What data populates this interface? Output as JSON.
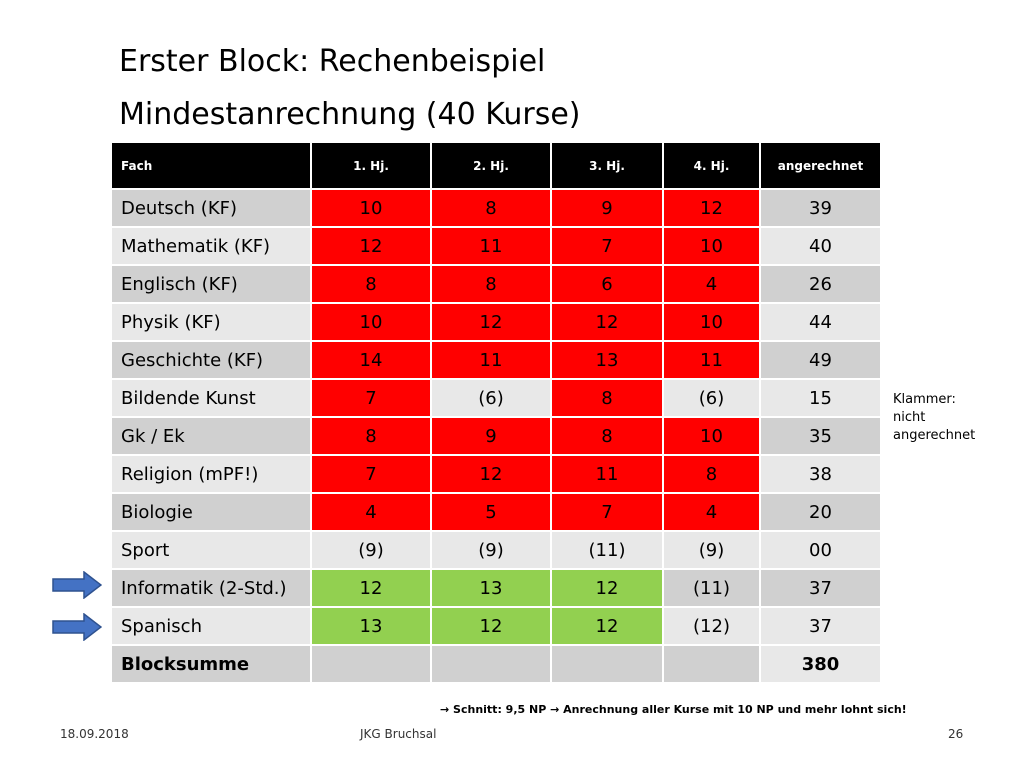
{
  "slide": {
    "title_line1": "Erster Block: Rechenbeispiel",
    "title_line2": "Mindestanrechnung (40 Kurse)"
  },
  "table": {
    "headers": [
      "Fach",
      "1. Hj.",
      "2. Hj.",
      "3. Hj.",
      "4. Hj.",
      "angerechnet"
    ],
    "rows": [
      {
        "fach": "Deutsch (KF)",
        "values": [
          "10",
          "8",
          "9",
          "12"
        ],
        "colors": [
          "red",
          "red",
          "red",
          "red"
        ],
        "sum": "39"
      },
      {
        "fach": "Mathematik  (KF)",
        "values": [
          "12",
          "11",
          "7",
          "10"
        ],
        "colors": [
          "red",
          "red",
          "red",
          "red"
        ],
        "sum": "40"
      },
      {
        "fach": "Englisch (KF)",
        "values": [
          "8",
          "8",
          "6",
          "4"
        ],
        "colors": [
          "red",
          "red",
          "red",
          "red"
        ],
        "sum": "26"
      },
      {
        "fach": "Physik (KF)",
        "values": [
          "10",
          "12",
          "12",
          "10"
        ],
        "colors": [
          "red",
          "red",
          "red",
          "red"
        ],
        "sum": "44"
      },
      {
        "fach": "Geschichte  (KF)",
        "values": [
          "14",
          "11",
          "13",
          "11"
        ],
        "colors": [
          "red",
          "red",
          "red",
          "red"
        ],
        "sum": "49"
      },
      {
        "fach": "Bildende Kunst",
        "values": [
          "7",
          "(6)",
          "8",
          "(6)"
        ],
        "colors": [
          "red",
          "plain",
          "red",
          "plain"
        ],
        "sum": "15"
      },
      {
        "fach": "Gk / Ek",
        "values": [
          "8",
          "9",
          "8",
          "10"
        ],
        "colors": [
          "red",
          "red",
          "red",
          "red"
        ],
        "sum": "35"
      },
      {
        "fach": "Religion (mPF!)",
        "values": [
          "7",
          "12",
          "11",
          "8"
        ],
        "colors": [
          "red",
          "red",
          "red",
          "red"
        ],
        "sum": "38"
      },
      {
        "fach": "Biologie",
        "values": [
          "4",
          "5",
          "7",
          "4"
        ],
        "colors": [
          "red",
          "red",
          "red",
          "red"
        ],
        "sum": "20"
      },
      {
        "fach": "Sport",
        "values": [
          "(9)",
          "(9)",
          "(11)",
          "(9)"
        ],
        "colors": [
          "plain",
          "plain",
          "plain",
          "plain"
        ],
        "sum": "00"
      },
      {
        "fach": "Informatik (2-Std.)",
        "values": [
          "12",
          "13",
          "12",
          "(11)"
        ],
        "colors": [
          "green",
          "green",
          "green",
          "plain"
        ],
        "sum": "37"
      },
      {
        "fach": "Spanisch",
        "values": [
          "13",
          "12",
          "12",
          "(12)"
        ],
        "colors": [
          "green",
          "green",
          "green",
          "plain"
        ],
        "sum": "37"
      }
    ],
    "total_label": "Blocksumme",
    "total_value": "380"
  },
  "note": {
    "line1": "Klammer:",
    "line2": "nicht",
    "line3": "angerechnet"
  },
  "footnote": "→ Schnitt: 9,5 NP  → Anrechnung aller Kurse mit 10 NP und mehr lohnt sich!",
  "footer": {
    "date": "18.09.2018",
    "school": "JKG Bruchsal",
    "page": "26"
  },
  "colors": {
    "red": "#ff0000",
    "green": "#92d050",
    "arrow": "#4472c4",
    "header": "#000000"
  },
  "icons": {
    "arrows": "right-arrow-icon"
  }
}
